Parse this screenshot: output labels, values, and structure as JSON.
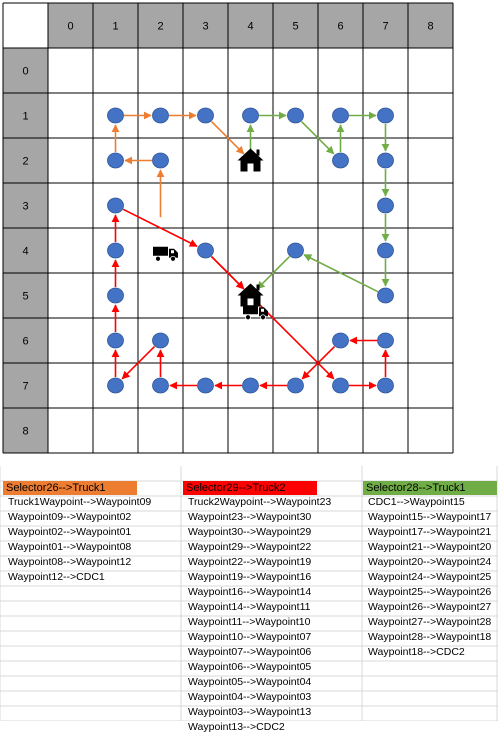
{
  "grid": {
    "col_labels": [
      "0",
      "1",
      "2",
      "3",
      "4",
      "5",
      "6",
      "7",
      "8"
    ],
    "row_labels": [
      "0",
      "1",
      "2",
      "3",
      "4",
      "5",
      "6",
      "7",
      "8"
    ]
  },
  "colors": {
    "header_gray": "#a6a6a6",
    "node_fill": "#4472c4",
    "route_orange": "#ed7d31",
    "route_red": "#ff0000",
    "route_green": "#70ad47",
    "icon_black": "#000000"
  },
  "icons": [
    "house-icon",
    "truck-icon"
  ],
  "waypoints": [
    {
      "col": 1,
      "row": 1
    },
    {
      "col": 2,
      "row": 1
    },
    {
      "col": 3,
      "row": 1
    },
    {
      "col": 4,
      "row": 1
    },
    {
      "col": 5,
      "row": 1
    },
    {
      "col": 6,
      "row": 1
    },
    {
      "col": 7,
      "row": 1
    },
    {
      "col": 1,
      "row": 2
    },
    {
      "col": 2,
      "row": 2
    },
    {
      "col": 6,
      "row": 2
    },
    {
      "col": 7,
      "row": 2
    },
    {
      "col": 1,
      "row": 3
    },
    {
      "col": 7,
      "row": 3
    },
    {
      "col": 1,
      "row": 4
    },
    {
      "col": 3,
      "row": 4
    },
    {
      "col": 5,
      "row": 4
    },
    {
      "col": 7,
      "row": 4
    },
    {
      "col": 1,
      "row": 5
    },
    {
      "col": 7,
      "row": 5
    },
    {
      "col": 1,
      "row": 6
    },
    {
      "col": 2,
      "row": 6
    },
    {
      "col": 6,
      "row": 6
    },
    {
      "col": 7,
      "row": 6
    },
    {
      "col": 1,
      "row": 7
    },
    {
      "col": 2,
      "row": 7
    },
    {
      "col": 3,
      "row": 7
    },
    {
      "col": 4,
      "row": 7
    },
    {
      "col": 5,
      "row": 7
    },
    {
      "col": 6,
      "row": 7
    },
    {
      "col": 7,
      "row": 7
    }
  ],
  "depots": [
    {
      "col": 4,
      "row": 2
    },
    {
      "col": 4,
      "row": 5
    }
  ],
  "trucks": [
    {
      "col": 2.1,
      "row": 4.05
    },
    {
      "col": 4.1,
      "row": 5.35
    }
  ],
  "paths": [
    {
      "route": "orange",
      "points": [
        [
          2,
          3.45
        ],
        [
          2,
          2
        ],
        [
          1,
          2
        ],
        [
          1,
          1
        ],
        [
          2,
          1
        ],
        [
          3,
          1
        ],
        [
          4,
          2
        ]
      ]
    },
    {
      "route": "red",
      "points": [
        [
          1,
          3
        ],
        [
          3,
          4
        ],
        [
          4,
          5
        ],
        [
          6,
          7
        ],
        [
          7,
          7
        ],
        [
          7,
          6
        ],
        [
          6,
          6
        ],
        [
          5,
          7
        ],
        [
          4,
          7
        ],
        [
          3,
          7
        ],
        [
          2,
          7
        ],
        [
          2,
          6
        ],
        [
          1,
          7
        ],
        [
          1,
          6
        ],
        [
          1,
          5
        ],
        [
          1,
          4
        ],
        [
          1,
          3
        ]
      ]
    },
    {
      "route": "red",
      "points": [
        [
          3,
          4
        ],
        [
          4,
          5
        ]
      ]
    },
    {
      "route": "green",
      "points": [
        [
          4,
          2
        ],
        [
          4,
          1
        ],
        [
          5,
          1
        ],
        [
          6,
          2
        ],
        [
          6,
          1
        ],
        [
          7,
          1
        ],
        [
          7,
          2
        ],
        [
          7,
          3
        ],
        [
          7,
          4
        ],
        [
          7,
          5
        ],
        [
          5,
          4
        ],
        [
          4,
          5
        ]
      ]
    }
  ],
  "routes": [
    {
      "header": "Selector26-->Truck1",
      "color": "#ed7d31",
      "text_color": "#000000",
      "rows": [
        "Truck1Waypoint-->Waypoint09",
        "Waypoint09-->Waypoint02",
        "Waypoint02-->Waypoint01",
        "Waypoint01-->Waypoint08",
        "Waypoint08-->Waypoint12",
        "Waypoint12-->CDC1"
      ]
    },
    {
      "header": "Selector29-->Truck2",
      "color": "#ff0000",
      "text_color": "#000000",
      "rows": [
        "Truck2Waypoint-->Waypoint23",
        "Waypoint23-->Waypoint30",
        "Waypoint30-->Waypoint29",
        "Waypoint29-->Waypoint22",
        "Waypoint22-->Waypoint19",
        "Waypoint19-->Waypoint16",
        "Waypoint16-->Waypoint14",
        "Waypoint14-->Waypoint11",
        "Waypoint11-->Waypoint10",
        "Waypoint10-->Waypoint07",
        "Waypoint07-->Waypoint06",
        "Waypoint06-->Waypoint05",
        "Waypoint05-->Waypoint04",
        "Waypoint04-->Waypoint03",
        "Waypoint03-->Waypoint13",
        "Waypoint13-->CDC2"
      ]
    },
    {
      "header": "Selector28-->Truck1",
      "color": "#70ad47",
      "text_color": "#000000",
      "rows": [
        "CDC1-->Waypoint15",
        "Waypoint15-->Waypoint17",
        "Waypoint17-->Waypoint21",
        "Waypoint21-->Waypoint20",
        "Waypoint20-->Waypoint24",
        "Waypoint24-->Waypoint25",
        "Waypoint25-->Waypoint26",
        "Waypoint26-->Waypoint27",
        "Waypoint27-->Waypoint28",
        "Waypoint28-->Waypoint18",
        "Waypoint18-->CDC2"
      ]
    }
  ]
}
